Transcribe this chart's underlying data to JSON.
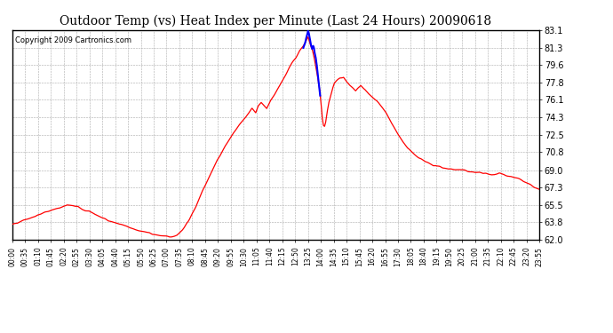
{
  "title": "Outdoor Temp (vs) Heat Index per Minute (Last 24 Hours) 20090618",
  "copyright": "Copyright 2009 Cartronics.com",
  "ylim": [
    62.0,
    83.1
  ],
  "yticks": [
    62.0,
    63.8,
    65.5,
    67.3,
    69.0,
    70.8,
    72.5,
    74.3,
    76.1,
    77.8,
    79.6,
    81.3,
    83.1
  ],
  "xtick_labels": [
    "00:00",
    "00:35",
    "01:10",
    "01:45",
    "02:20",
    "02:55",
    "03:30",
    "04:05",
    "04:40",
    "05:15",
    "05:50",
    "06:25",
    "07:00",
    "07:35",
    "08:10",
    "08:45",
    "09:20",
    "09:55",
    "10:30",
    "11:05",
    "11:40",
    "12:15",
    "12:50",
    "13:25",
    "14:00",
    "14:35",
    "15:10",
    "15:45",
    "16:20",
    "16:55",
    "17:30",
    "18:05",
    "18:40",
    "19:15",
    "19:50",
    "20:25",
    "21:00",
    "21:35",
    "22:10",
    "22:45",
    "23:20",
    "23:55"
  ],
  "bg_color": "#ffffff",
  "plot_bg_color": "#ffffff",
  "grid_color": "#aaaaaa",
  "line_color_red": "#ff0000",
  "line_color_blue": "#0000ff",
  "title_fontsize": 10,
  "copyright_fontsize": 6,
  "red_keypoints": [
    [
      0,
      63.5
    ],
    [
      30,
      64.0
    ],
    [
      60,
      64.3
    ],
    [
      90,
      64.8
    ],
    [
      120,
      65.1
    ],
    [
      150,
      65.5
    ],
    [
      180,
      65.3
    ],
    [
      200,
      64.9
    ],
    [
      220,
      64.7
    ],
    [
      240,
      64.3
    ],
    [
      260,
      64.0
    ],
    [
      280,
      63.7
    ],
    [
      300,
      63.5
    ],
    [
      320,
      63.2
    ],
    [
      340,
      63.0
    ],
    [
      360,
      62.8
    ],
    [
      390,
      62.5
    ],
    [
      410,
      62.4
    ],
    [
      420,
      62.3
    ],
    [
      435,
      62.3
    ],
    [
      450,
      62.5
    ],
    [
      465,
      63.0
    ],
    [
      480,
      63.8
    ],
    [
      500,
      65.2
    ],
    [
      520,
      67.0
    ],
    [
      540,
      68.5
    ],
    [
      560,
      70.0
    ],
    [
      580,
      71.3
    ],
    [
      600,
      72.5
    ],
    [
      620,
      73.5
    ],
    [
      640,
      74.5
    ],
    [
      655,
      75.2
    ],
    [
      665,
      74.8
    ],
    [
      672,
      75.5
    ],
    [
      680,
      75.8
    ],
    [
      695,
      75.2
    ],
    [
      705,
      76.0
    ],
    [
      715,
      76.5
    ],
    [
      725,
      77.2
    ],
    [
      735,
      77.8
    ],
    [
      745,
      78.5
    ],
    [
      755,
      79.2
    ],
    [
      765,
      79.8
    ],
    [
      775,
      80.3
    ],
    [
      785,
      81.0
    ],
    [
      795,
      81.5
    ],
    [
      800,
      81.8
    ],
    [
      805,
      82.2
    ],
    [
      808,
      82.4
    ],
    [
      811,
      82.0
    ],
    [
      815,
      81.5
    ],
    [
      820,
      81.0
    ],
    [
      825,
      80.2
    ],
    [
      830,
      79.3
    ],
    [
      835,
      78.2
    ],
    [
      840,
      77.0
    ],
    [
      844,
      75.5
    ],
    [
      847,
      74.2
    ],
    [
      850,
      73.5
    ],
    [
      853,
      73.4
    ],
    [
      856,
      73.8
    ],
    [
      860,
      74.8
    ],
    [
      865,
      75.8
    ],
    [
      870,
      76.5
    ],
    [
      875,
      77.2
    ],
    [
      880,
      77.7
    ],
    [
      888,
      78.0
    ],
    [
      895,
      78.2
    ],
    [
      905,
      78.3
    ],
    [
      912,
      77.9
    ],
    [
      920,
      77.6
    ],
    [
      930,
      77.3
    ],
    [
      938,
      77.0
    ],
    [
      945,
      77.3
    ],
    [
      952,
      77.5
    ],
    [
      958,
      77.2
    ],
    [
      965,
      77.0
    ],
    [
      975,
      76.7
    ],
    [
      985,
      76.3
    ],
    [
      995,
      76.0
    ],
    [
      1005,
      75.5
    ],
    [
      1020,
      74.8
    ],
    [
      1035,
      73.8
    ],
    [
      1050,
      72.8
    ],
    [
      1065,
      72.0
    ],
    [
      1080,
      71.2
    ],
    [
      1095,
      70.7
    ],
    [
      1110,
      70.2
    ],
    [
      1130,
      69.8
    ],
    [
      1150,
      69.5
    ],
    [
      1170,
      69.3
    ],
    [
      1200,
      69.1
    ],
    [
      1230,
      69.0
    ],
    [
      1260,
      68.8
    ],
    [
      1290,
      68.7
    ],
    [
      1310,
      68.5
    ],
    [
      1330,
      68.7
    ],
    [
      1350,
      68.5
    ],
    [
      1370,
      68.3
    ],
    [
      1390,
      68.0
    ],
    [
      1410,
      67.6
    ],
    [
      1425,
      67.3
    ],
    [
      1440,
      67.0
    ]
  ],
  "blue_keypoints": [
    [
      795,
      81.3
    ],
    [
      800,
      81.8
    ],
    [
      803,
      82.3
    ],
    [
      806,
      82.7
    ],
    [
      808,
      83.0
    ],
    [
      810,
      82.8
    ],
    [
      813,
      82.2
    ],
    [
      816,
      81.6
    ],
    [
      819,
      81.2
    ],
    [
      822,
      81.5
    ],
    [
      824,
      81.3
    ],
    [
      826,
      80.8
    ],
    [
      829,
      80.3
    ],
    [
      832,
      79.5
    ],
    [
      835,
      78.5
    ],
    [
      838,
      77.5
    ],
    [
      841,
      76.5
    ]
  ]
}
